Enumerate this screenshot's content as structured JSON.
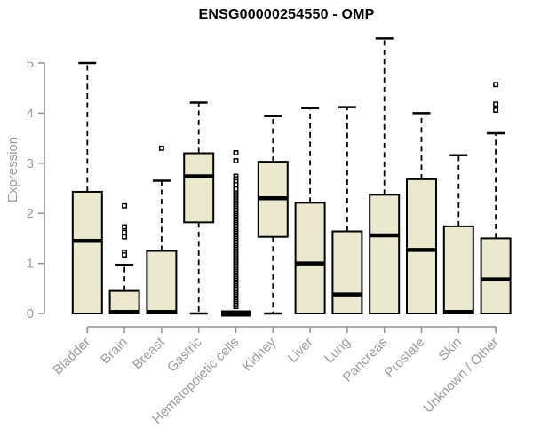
{
  "page": {
    "background": "#ffffff"
  },
  "chart_data": {
    "type": "boxplot",
    "title": "ENSG00000254550 - OMP",
    "ylabel": "Expression",
    "ylim": [
      0,
      5
    ],
    "yticks": [
      0,
      1,
      2,
      3,
      4,
      5
    ],
    "grid": false,
    "legend": null,
    "categories": [
      "Bladder",
      "Brain",
      "Breast",
      "Gastric",
      "Hematopoietic cells",
      "Kidney",
      "Liver",
      "Lung",
      "Pancreas",
      "Prostate",
      "Skin",
      "Unknown / Other"
    ],
    "boxes": [
      {
        "category": "Bladder",
        "whisker_low": 0,
        "q1": 0,
        "median": 1.45,
        "q3": 2.43,
        "whisker_high": 5.0,
        "outliers": [],
        "outlier_band": null,
        "collapsed": false
      },
      {
        "category": "Brain",
        "whisker_low": 0,
        "q1": 0,
        "median": 0.03,
        "q3": 0.45,
        "whisker_high": 0.97,
        "outliers": [
          2.15,
          1.73,
          1.62,
          1.53,
          1.22,
          1.17
        ],
        "outlier_band": null,
        "collapsed": false
      },
      {
        "category": "Breast",
        "whisker_low": 0,
        "q1": 0,
        "median": 0.03,
        "q3": 1.25,
        "whisker_high": 2.65,
        "outliers": [
          3.3
        ],
        "outlier_band": null,
        "collapsed": false
      },
      {
        "category": "Gastric",
        "whisker_low": 0,
        "q1": 1.82,
        "median": 2.74,
        "q3": 3.2,
        "whisker_high": 4.21,
        "outliers": [],
        "outlier_band": null,
        "collapsed": false
      },
      {
        "category": "Hematopoietic cells",
        "whisker_low": 0,
        "q1": 0,
        "median": 0,
        "q3": 0,
        "whisker_high": 0,
        "outliers": [
          3.21,
          3.05,
          2.74,
          2.69,
          2.63,
          2.57
        ],
        "outlier_band": [
          0.14,
          2.5
        ],
        "collapsed": true
      },
      {
        "category": "Kidney",
        "whisker_low": 0,
        "q1": 1.53,
        "median": 2.3,
        "q3": 3.03,
        "whisker_high": 3.94,
        "outliers": [],
        "outlier_band": null,
        "collapsed": false
      },
      {
        "category": "Liver",
        "whisker_low": 0,
        "q1": 0,
        "median": 1.0,
        "q3": 2.21,
        "whisker_high": 4.1,
        "outliers": [],
        "outlier_band": null,
        "collapsed": false
      },
      {
        "category": "Lung",
        "whisker_low": 0,
        "q1": 0,
        "median": 0.38,
        "q3": 1.64,
        "whisker_high": 4.12,
        "outliers": [],
        "outlier_band": null,
        "collapsed": false
      },
      {
        "category": "Pancreas",
        "whisker_low": 0,
        "q1": 0,
        "median": 1.56,
        "q3": 2.37,
        "whisker_high": 5.49,
        "outliers": [],
        "outlier_band": null,
        "collapsed": false
      },
      {
        "category": "Prostate",
        "whisker_low": 0,
        "q1": 0,
        "median": 1.27,
        "q3": 2.68,
        "whisker_high": 4.0,
        "outliers": [],
        "outlier_band": null,
        "collapsed": false
      },
      {
        "category": "Skin",
        "whisker_low": 0,
        "q1": 0,
        "median": 0.03,
        "q3": 1.74,
        "whisker_high": 3.16,
        "outliers": [],
        "outlier_band": null,
        "collapsed": false
      },
      {
        "category": "Unknown / Other",
        "whisker_low": 0,
        "q1": 0,
        "median": 0.68,
        "q3": 1.5,
        "whisker_high": 3.6,
        "outliers": [
          4.57,
          4.18,
          4.06
        ],
        "outlier_band": null,
        "collapsed": false
      }
    ],
    "style": {
      "box_fill": "#ece8ce",
      "box_stroke": "#000000",
      "median_color": "#000000",
      "whisker_color": "#000000",
      "outlier_color": "#000000",
      "axis_color": "#8f8f8f",
      "tick_label_color": "#9a9a9a",
      "title_color": "#000000"
    }
  }
}
